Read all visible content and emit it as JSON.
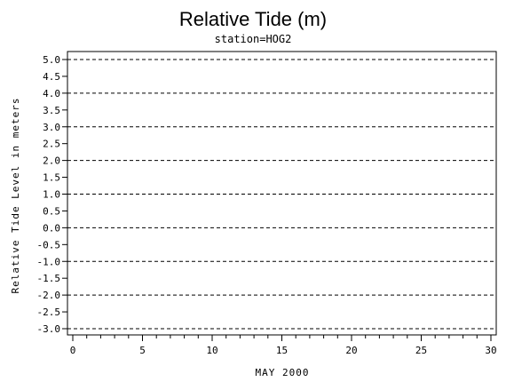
{
  "chart_data": {
    "type": "line",
    "title": "Relative Tide (m)",
    "subtitle": "station=HOG2",
    "xlabel": "MAY 2000",
    "ylabel": "Relative Tide Level in meters",
    "xlim": [
      0,
      30
    ],
    "ylim": [
      -3.0,
      5.0
    ],
    "x_ticks": [
      "0",
      "5",
      "10",
      "15",
      "20",
      "25",
      "30"
    ],
    "y_ticks": [
      "5.0",
      "4.5",
      "4.0",
      "3.5",
      "3.0",
      "2.5",
      "2.0",
      "1.5",
      "1.0",
      "0.5",
      "0.0",
      "-0.5",
      "-1.0",
      "-1.5",
      "-2.0",
      "-2.5",
      "-3.0"
    ],
    "grid": "dashed horizontal lines at every 1.0 m",
    "series": []
  }
}
